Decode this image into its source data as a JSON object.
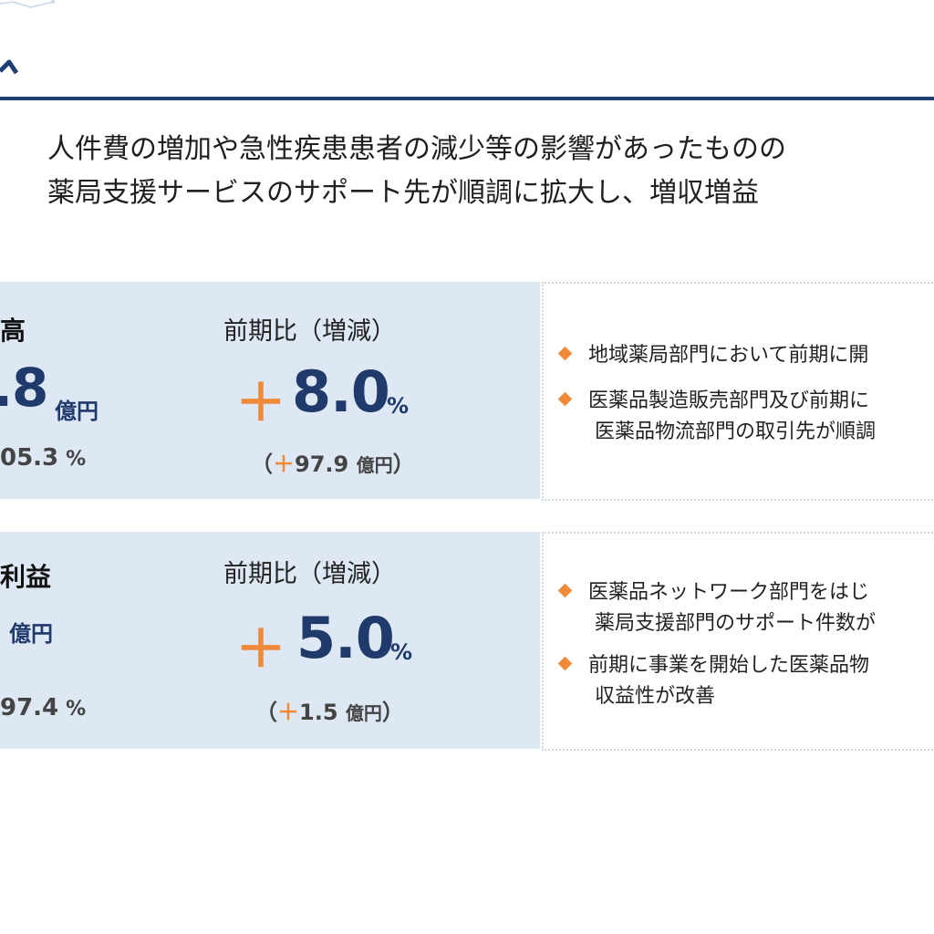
{
  "headline": {
    "line1": "人件費の増加や急性疾患患者の減少等の影響があったものの",
    "line2": "薬局支援サービスのサポート先が順調に拡大し、増収増益"
  },
  "sales": {
    "label": "高",
    "value": ".8",
    "unit": "億円",
    "ratio": "05.3",
    "ratio_unit": "%",
    "cmp_label": "前期比（増減）",
    "cmp_plus": "＋",
    "cmp_value": "8.0",
    "cmp_pct": "%",
    "amt_open": "（",
    "amt_plus": "＋",
    "amt_value": "97.9",
    "amt_unit": "億円",
    "amt_close": "）"
  },
  "profit": {
    "label": "利益",
    "unit": "億円",
    "ratio": "97.4",
    "ratio_unit": "%",
    "cmp_label": "前期比（増減）",
    "cmp_plus": "＋",
    "cmp_value": "5.0",
    "cmp_pct": "%",
    "amt_open": "（",
    "amt_plus": "＋",
    "amt_value": "1.5",
    "amt_unit": "億円",
    "amt_close": "）"
  },
  "notes_sales": [
    "地域薬局部門において前期に開",
    "医薬品製造販売部門及び前期に",
    "医薬品物流部門の取引先が順調"
  ],
  "notes_profit": [
    "医薬品ネットワーク部門をはじ",
    "薬局支援部門のサポート件数が",
    "前期に事業を開始した医薬品物",
    "収益性が改善"
  ],
  "colors": {
    "navy": "#1f3a6b",
    "orange": "#ef8a3a",
    "panel": "#dde8f4",
    "rule": "#1f3f74"
  }
}
